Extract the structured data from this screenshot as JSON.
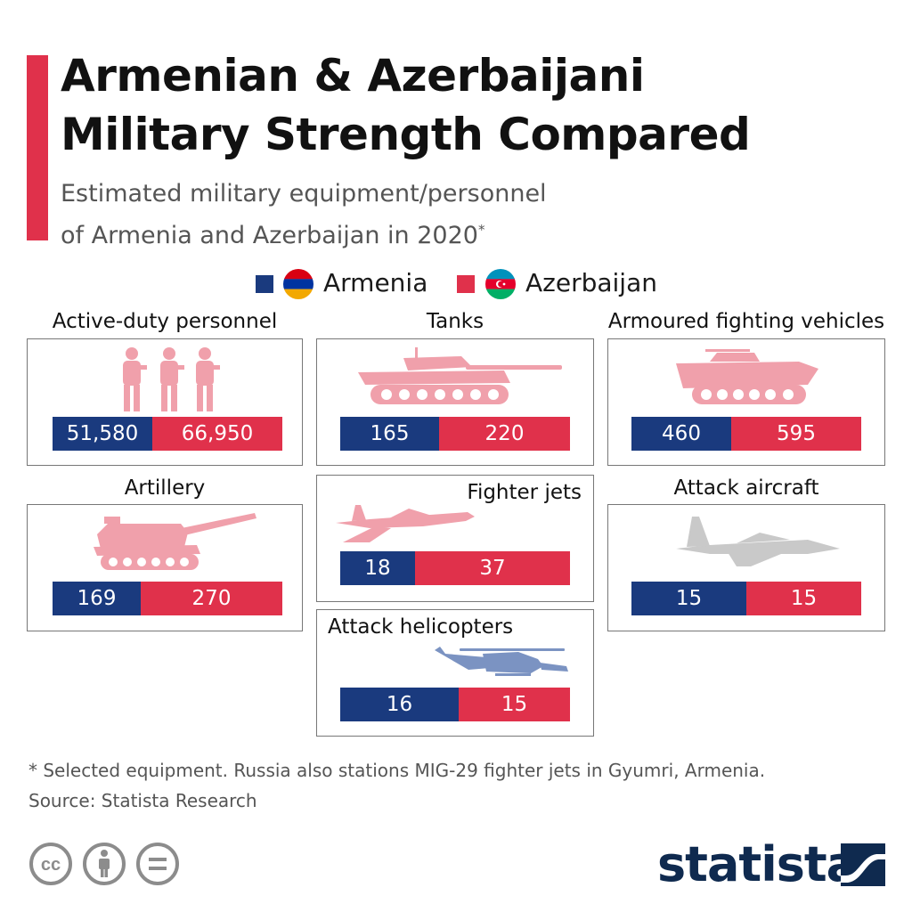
{
  "header": {
    "title_line1": "Armenian & Azerbaijani",
    "title_line2": "Military Strength Compared",
    "subtitle_line1": "Estimated military equipment/personnel",
    "subtitle_line2": "of Armenia and Azerbaijan in 2020",
    "subtitle_mark": "*"
  },
  "colors": {
    "armenia": "#1a3a7e",
    "azerbaijan": "#e0314b",
    "accent": "#e0314b",
    "icon_red": "#f0a0ab",
    "icon_grey": "#c9c9c9",
    "icon_blue": "#7b93c2"
  },
  "chart_data": {
    "type": "bar",
    "orientation": "horizontal-stacked",
    "series_names": [
      "Armenia",
      "Azerbaijan"
    ],
    "categories": [
      "Active-duty personnel",
      "Tanks",
      "Armoured fighting vehicles",
      "Artillery",
      "Fighter jets",
      "Attack aircraft",
      "Attack helicopters"
    ],
    "panels": [
      {
        "key": "personnel",
        "title": "Active-duty personnel",
        "armenia": 51580,
        "azerbaijan": 66950,
        "armenia_label": "51,580",
        "azerbaijan_label": "66,950",
        "icon": "soldiers-icon"
      },
      {
        "key": "tanks",
        "title": "Tanks",
        "armenia": 165,
        "azerbaijan": 220,
        "armenia_label": "165",
        "azerbaijan_label": "220",
        "icon": "tank-icon"
      },
      {
        "key": "afv",
        "title": "Armoured fighting vehicles",
        "armenia": 460,
        "azerbaijan": 595,
        "armenia_label": "460",
        "azerbaijan_label": "595",
        "icon": "armoured-vehicle-icon"
      },
      {
        "key": "artillery",
        "title": "Artillery",
        "armenia": 169,
        "azerbaijan": 270,
        "armenia_label": "169",
        "azerbaijan_label": "270",
        "icon": "artillery-icon"
      },
      {
        "key": "jets",
        "title": "Fighter jets",
        "armenia": 18,
        "azerbaijan": 37,
        "armenia_label": "18",
        "azerbaijan_label": "37",
        "icon": "fighter-jet-icon"
      },
      {
        "key": "aircraft",
        "title": "Attack aircraft",
        "armenia": 15,
        "azerbaijan": 15,
        "armenia_label": "15",
        "azerbaijan_label": "15",
        "icon": "attack-aircraft-icon"
      },
      {
        "key": "helis",
        "title": "Attack helicopters",
        "armenia": 16,
        "azerbaijan": 15,
        "armenia_label": "16",
        "azerbaijan_label": "15",
        "icon": "helicopter-icon"
      }
    ],
    "legend": {
      "placement": "top-center",
      "entries": [
        {
          "name": "Armenia",
          "color": "#1a3a7e",
          "flag": "armenia-flag-icon"
        },
        {
          "name": "Azerbaijan",
          "color": "#e0314b",
          "flag": "azerbaijan-flag-icon"
        }
      ]
    }
  },
  "footer": {
    "note": "* Selected equipment. Russia also stations MIG-29 fighter jets in Gyumri, Armenia.",
    "source": "Source: Statista Research",
    "logo_text": "statista",
    "license_icons": [
      "cc-icon",
      "attribution-icon",
      "no-derivatives-icon"
    ]
  }
}
